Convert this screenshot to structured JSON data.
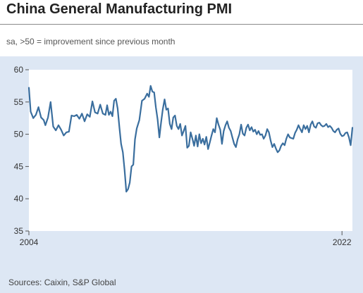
{
  "title": "China General Manufacturing PMI",
  "subtitle": "sa, >50 = improvement since previous month",
  "source": "Sources: Caixin, S&P Global",
  "colors": {
    "panel": "#dde7f4",
    "line": "#3a6e9e",
    "plot_bg": "#ffffff"
  },
  "chart_data": {
    "type": "line",
    "title": "China General Manufacturing PMI",
    "xlabel": "",
    "ylabel": "",
    "ylim": [
      35,
      60
    ],
    "yticks": [
      35,
      40,
      45,
      50,
      55,
      60
    ],
    "xlim": [
      2004,
      2022.6
    ],
    "xtick_labels": [
      {
        "value": 2004,
        "label": "2004"
      },
      {
        "value": 2022,
        "label": "2022"
      }
    ],
    "grid": false,
    "legend": "none",
    "series": [
      {
        "name": "",
        "points": [
          [
            2004.0,
            57.2
          ],
          [
            2004.1,
            53.5
          ],
          [
            2004.25,
            52.5
          ],
          [
            2004.4,
            53.0
          ],
          [
            2004.55,
            54.2
          ],
          [
            2004.7,
            52.6
          ],
          [
            2004.85,
            52.2
          ],
          [
            2004.95,
            51.4
          ],
          [
            2005.1,
            52.6
          ],
          [
            2005.25,
            55.0
          ],
          [
            2005.4,
            51.2
          ],
          [
            2005.55,
            50.6
          ],
          [
            2005.7,
            51.4
          ],
          [
            2005.85,
            50.7
          ],
          [
            2006.0,
            49.8
          ],
          [
            2006.15,
            50.3
          ],
          [
            2006.3,
            50.4
          ],
          [
            2006.45,
            52.9
          ],
          [
            2006.6,
            52.8
          ],
          [
            2006.75,
            53.0
          ],
          [
            2006.9,
            52.4
          ],
          [
            2007.05,
            53.2
          ],
          [
            2007.2,
            52.0
          ],
          [
            2007.35,
            53.1
          ],
          [
            2007.5,
            52.7
          ],
          [
            2007.65,
            55.1
          ],
          [
            2007.8,
            53.4
          ],
          [
            2007.95,
            53.2
          ],
          [
            2008.1,
            54.6
          ],
          [
            2008.25,
            53.2
          ],
          [
            2008.4,
            53.0
          ],
          [
            2008.5,
            54.5
          ],
          [
            2008.6,
            53.0
          ],
          [
            2008.7,
            53.5
          ],
          [
            2008.8,
            52.8
          ],
          [
            2008.9,
            55.2
          ],
          [
            2009.0,
            55.5
          ],
          [
            2009.1,
            54.0
          ],
          [
            2009.2,
            51.2
          ],
          [
            2009.3,
            48.5
          ],
          [
            2009.4,
            47.2
          ],
          [
            2009.5,
            44.5
          ],
          [
            2009.6,
            41.1
          ],
          [
            2009.7,
            41.5
          ],
          [
            2009.8,
            42.5
          ],
          [
            2009.9,
            45.0
          ],
          [
            2010.0,
            45.3
          ],
          [
            2010.1,
            49.2
          ],
          [
            2010.2,
            50.9
          ],
          [
            2010.35,
            52.2
          ],
          [
            2010.5,
            55.2
          ],
          [
            2010.65,
            55.5
          ],
          [
            2010.8,
            56.3
          ],
          [
            2010.9,
            55.8
          ],
          [
            2011.0,
            57.5
          ],
          [
            2011.1,
            56.6
          ],
          [
            2011.2,
            56.5
          ],
          [
            2011.3,
            54.2
          ],
          [
            2011.4,
            52.3
          ],
          [
            2011.5,
            49.5
          ],
          [
            2011.6,
            51.8
          ],
          [
            2011.7,
            53.9
          ],
          [
            2011.8,
            55.4
          ],
          [
            2011.9,
            53.8
          ],
          [
            2012.0,
            54.0
          ],
          [
            2012.1,
            51.6
          ],
          [
            2012.2,
            50.8
          ],
          [
            2012.3,
            52.6
          ],
          [
            2012.4,
            52.9
          ],
          [
            2012.5,
            51.3
          ],
          [
            2012.6,
            50.8
          ],
          [
            2012.7,
            51.6
          ],
          [
            2012.8,
            49.8
          ],
          [
            2012.9,
            50.5
          ],
          [
            2013.0,
            51.3
          ],
          [
            2013.1,
            47.9
          ],
          [
            2013.2,
            48.2
          ],
          [
            2013.3,
            50.3
          ],
          [
            2013.4,
            49.3
          ],
          [
            2013.5,
            48.2
          ],
          [
            2013.6,
            49.8
          ],
          [
            2013.7,
            48.1
          ],
          [
            2013.8,
            50.0
          ],
          [
            2013.9,
            48.6
          ],
          [
            2014.0,
            49.3
          ],
          [
            2014.1,
            48.4
          ],
          [
            2014.2,
            49.6
          ],
          [
            2014.3,
            47.7
          ],
          [
            2014.4,
            48.7
          ],
          [
            2014.5,
            49.8
          ],
          [
            2014.6,
            50.8
          ],
          [
            2014.7,
            50.3
          ],
          [
            2014.8,
            52.5
          ],
          [
            2014.9,
            51.5
          ],
          [
            2015.0,
            50.7
          ],
          [
            2015.1,
            48.5
          ],
          [
            2015.2,
            50.5
          ],
          [
            2015.3,
            51.4
          ],
          [
            2015.4,
            52.0
          ],
          [
            2015.5,
            51.0
          ],
          [
            2015.6,
            50.5
          ],
          [
            2015.7,
            49.5
          ],
          [
            2015.8,
            48.5
          ],
          [
            2015.9,
            48.0
          ],
          [
            2016.0,
            49.2
          ],
          [
            2016.1,
            50.0
          ],
          [
            2016.2,
            51.5
          ],
          [
            2016.3,
            50.1
          ],
          [
            2016.4,
            49.8
          ],
          [
            2016.5,
            51.0
          ],
          [
            2016.6,
            51.5
          ],
          [
            2016.7,
            50.6
          ],
          [
            2016.8,
            51.1
          ],
          [
            2016.9,
            50.4
          ],
          [
            2017.0,
            50.7
          ],
          [
            2017.1,
            50.0
          ],
          [
            2017.2,
            50.5
          ],
          [
            2017.3,
            49.9
          ],
          [
            2017.4,
            50.0
          ],
          [
            2017.5,
            49.3
          ],
          [
            2017.6,
            49.8
          ],
          [
            2017.7,
            50.8
          ],
          [
            2017.8,
            50.3
          ],
          [
            2017.9,
            49.0
          ],
          [
            2018.0,
            48.0
          ],
          [
            2018.1,
            48.5
          ],
          [
            2018.2,
            47.8
          ],
          [
            2018.3,
            47.2
          ],
          [
            2018.4,
            47.5
          ],
          [
            2018.5,
            48.2
          ],
          [
            2018.6,
            48.6
          ],
          [
            2018.7,
            48.3
          ],
          [
            2018.8,
            49.3
          ],
          [
            2018.9,
            50.0
          ],
          [
            2019.0,
            49.5
          ],
          [
            2019.1,
            49.4
          ],
          [
            2019.2,
            49.3
          ],
          [
            2019.3,
            50.2
          ],
          [
            2019.4,
            50.7
          ],
          [
            2019.5,
            51.4
          ],
          [
            2019.6,
            50.8
          ],
          [
            2019.7,
            50.3
          ],
          [
            2019.8,
            51.4
          ],
          [
            2019.9,
            50.8
          ],
          [
            2020.0,
            51.3
          ],
          [
            2020.1,
            50.3
          ],
          [
            2020.2,
            51.5
          ],
          [
            2020.3,
            52.0
          ],
          [
            2020.4,
            51.2
          ],
          [
            2020.5,
            51.0
          ],
          [
            2020.6,
            51.7
          ],
          [
            2020.7,
            51.8
          ],
          [
            2020.8,
            51.4
          ],
          [
            2020.9,
            51.2
          ],
          [
            2021.0,
            51.3
          ],
          [
            2021.1,
            51.6
          ],
          [
            2021.2,
            51.1
          ],
          [
            2021.3,
            51.3
          ],
          [
            2021.4,
            51.0
          ],
          [
            2021.5,
            50.5
          ],
          [
            2021.6,
            50.3
          ],
          [
            2021.7,
            50.7
          ],
          [
            2021.8,
            50.9
          ],
          [
            2021.9,
            50.1
          ],
          [
            2022.0,
            49.7
          ],
          [
            2022.1,
            49.8
          ],
          [
            2022.2,
            50.2
          ],
          [
            2022.3,
            50.3
          ],
          [
            2022.4,
            49.5
          ],
          [
            2022.5,
            48.3
          ],
          [
            2022.6,
            51.0
          ]
        ]
      }
    ]
  }
}
